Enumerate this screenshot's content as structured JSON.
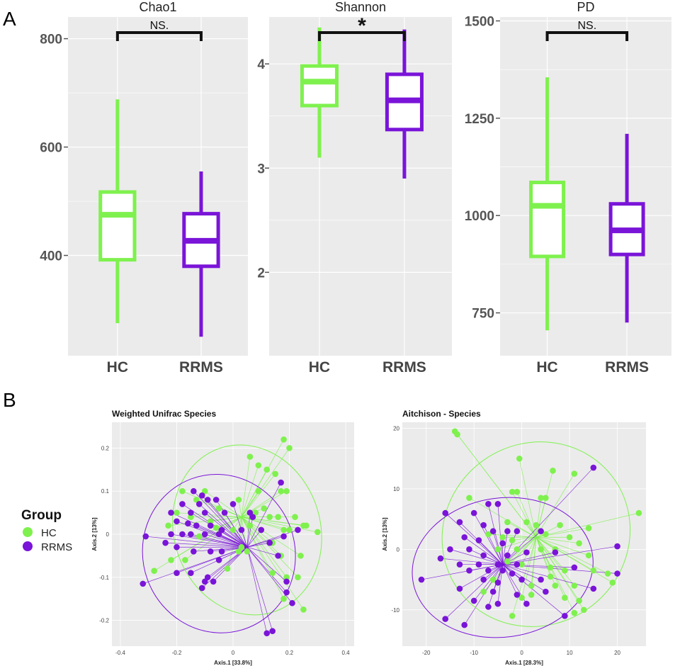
{
  "panel_labels": {
    "a": "A",
    "b": "B"
  },
  "colors": {
    "HC": "#7ff14e",
    "RRMS": "#7a14d8",
    "panel_bg": "#ebebeb",
    "grid": "#ffffff"
  },
  "legend": {
    "title": "Group",
    "items": [
      "HC",
      "RRMS"
    ]
  },
  "chart_data": [
    {
      "type": "boxplot",
      "title": "Chao1",
      "categories": [
        "HC",
        "RRMS"
      ],
      "yticks": [
        400,
        600,
        800
      ],
      "ylim": [
        215,
        840
      ],
      "boxes": [
        {
          "group": "HC",
          "min": 275,
          "q1": 392,
          "median": 475,
          "q3": 517,
          "max": 688
        },
        {
          "group": "RRMS",
          "min": 250,
          "q1": 380,
          "median": 427,
          "q3": 477,
          "max": 555
        }
      ],
      "significance": "NS."
    },
    {
      "type": "boxplot",
      "title": "Shannon",
      "categories": [
        "HC",
        "RRMS"
      ],
      "yticks": [
        2,
        3,
        4
      ],
      "ylim": [
        1.2,
        4.45
      ],
      "boxes": [
        {
          "group": "HC",
          "min": 3.1,
          "q1": 3.6,
          "median": 3.83,
          "q3": 3.98,
          "max": 4.35
        },
        {
          "group": "RRMS",
          "min": 2.9,
          "q1": 3.37,
          "median": 3.65,
          "q3": 3.9,
          "max": 4.33
        }
      ],
      "significance": "*"
    },
    {
      "type": "boxplot",
      "title": "PD",
      "categories": [
        "HC",
        "RRMS"
      ],
      "yticks": [
        750,
        1000,
        1250,
        1500
      ],
      "ylim": [
        640,
        1510
      ],
      "boxes": [
        {
          "group": "HC",
          "min": 705,
          "q1": 895,
          "median": 1025,
          "q3": 1085,
          "max": 1355
        },
        {
          "group": "RRMS",
          "min": 725,
          "q1": 900,
          "median": 962,
          "q3": 1030,
          "max": 1210
        }
      ],
      "significance": "NS."
    },
    {
      "type": "scatter",
      "title": "Weighted Unifrac Species",
      "xlabel": "Axis.1   [33.8%]",
      "ylabel": "Axis.2   [13%]",
      "xticks": [
        -0.4,
        -0.2,
        0.0,
        0.2,
        0.4
      ],
      "yticks": [
        -0.2,
        -0.1,
        0.0,
        0.1,
        0.2
      ],
      "xlim": [
        -0.43,
        0.43
      ],
      "ylim": [
        -0.26,
        0.26
      ],
      "centroids": {
        "HC": [
          0.03,
          0.04
        ],
        "RRMS": [
          0.05,
          -0.03
        ]
      },
      "ellipses": {
        "HC": {
          "cx": 0.05,
          "cy": 0.01,
          "rx": 0.26,
          "ry": 0.2,
          "angle": -18
        },
        "RRMS": {
          "cx": -0.05,
          "cy": -0.045,
          "rx": 0.27,
          "ry": 0.185,
          "angle": -20
        }
      },
      "points": {
        "HC": [
          [
            0.18,
            0.22
          ],
          [
            0.2,
            0.2
          ],
          [
            0.06,
            0.18
          ],
          [
            0.09,
            0.16
          ],
          [
            0.12,
            0.15
          ],
          [
            -0.18,
            0.1
          ],
          [
            0.15,
            0.14
          ],
          [
            0.17,
            0.1
          ],
          [
            0.19,
            0.1
          ],
          [
            -0.1,
            0.1
          ],
          [
            -0.05,
            0.06
          ],
          [
            0.02,
            0.08
          ],
          [
            0.08,
            0.05
          ],
          [
            0.11,
            0.06
          ],
          [
            -0.2,
            0.05
          ],
          [
            -0.15,
            0.04
          ],
          [
            -0.08,
            0.03
          ],
          [
            0.16,
            0.04
          ],
          [
            0.22,
            0.04
          ],
          [
            0.25,
            0.02
          ],
          [
            0.26,
            0.02
          ],
          [
            0.3,
            0.005
          ],
          [
            -0.23,
            0.02
          ],
          [
            -0.06,
            0.015
          ],
          [
            0.0,
            0.01
          ],
          [
            0.06,
            0.02
          ],
          [
            0.18,
            0.01
          ],
          [
            0.2,
            0.01
          ],
          [
            -0.12,
            -0.005
          ],
          [
            0.02,
            -0.04
          ],
          [
            0.14,
            -0.02
          ],
          [
            -0.22,
            -0.06
          ],
          [
            -0.17,
            -0.06
          ],
          [
            0.05,
            -0.04
          ],
          [
            0.17,
            -0.05
          ],
          [
            0.24,
            -0.05
          ],
          [
            -0.28,
            -0.085
          ],
          [
            -0.02,
            -0.08
          ],
          [
            0.14,
            -0.09
          ],
          [
            0.19,
            -0.1
          ],
          [
            0.23,
            -0.1
          ],
          [
            0.18,
            -0.15
          ],
          [
            0.25,
            -0.175
          ],
          [
            0.03,
            -0.03
          ],
          [
            0.09,
            0.1
          ],
          [
            -0.13,
            0.08
          ],
          [
            0.13,
            0.04
          ]
        ],
        "RRMS": [
          [
            0.17,
            0.12
          ],
          [
            -0.14,
            0.1
          ],
          [
            -0.11,
            0.09
          ],
          [
            -0.09,
            0.08
          ],
          [
            -0.18,
            0.07
          ],
          [
            -0.06,
            0.08
          ],
          [
            -0.12,
            0.07
          ],
          [
            -0.03,
            0.05
          ],
          [
            0.0,
            0.07
          ],
          [
            -0.22,
            0.05
          ],
          [
            -0.15,
            0.05
          ],
          [
            -0.1,
            0.05
          ],
          [
            0.06,
            0.05
          ],
          [
            0.07,
            0.04
          ],
          [
            -0.2,
            0.03
          ],
          [
            -0.16,
            0.025
          ],
          [
            -0.13,
            0.02
          ],
          [
            -0.08,
            0.02
          ],
          [
            -0.04,
            0.01
          ],
          [
            0.03,
            0.01
          ],
          [
            0.1,
            0.01
          ],
          [
            -0.22,
            0.0
          ],
          [
            -0.18,
            0.0
          ],
          [
            -0.15,
            0.0
          ],
          [
            -0.1,
            0.0
          ],
          [
            -0.05,
            0.0
          ],
          [
            0.18,
            -0.005
          ],
          [
            0.23,
            0.01
          ],
          [
            -0.31,
            -0.005
          ],
          [
            -0.24,
            -0.02
          ],
          [
            -0.2,
            -0.03
          ],
          [
            -0.14,
            -0.04
          ],
          [
            -0.08,
            -0.04
          ],
          [
            -0.04,
            -0.04
          ],
          [
            0.13,
            -0.02
          ],
          [
            0.16,
            -0.05
          ],
          [
            -0.2,
            -0.09
          ],
          [
            -0.15,
            -0.09
          ],
          [
            -0.1,
            -0.11
          ],
          [
            -0.07,
            -0.11
          ],
          [
            0.19,
            -0.11
          ],
          [
            -0.32,
            -0.115
          ],
          [
            -0.11,
            -0.125
          ],
          [
            -0.09,
            -0.1
          ],
          [
            0.19,
            -0.135
          ],
          [
            0.21,
            -0.16
          ],
          [
            0.12,
            -0.23
          ],
          [
            0.14,
            -0.225
          ],
          [
            -0.05,
            -0.06
          ]
        ]
      }
    },
    {
      "type": "scatter",
      "title": "Aitchison - Species",
      "xlabel": "Axis.1   [28.3%]",
      "ylabel": "Axis.2   [13%]",
      "xticks": [
        -20,
        -10,
        0,
        10,
        20
      ],
      "yticks": [
        -10,
        0,
        10,
        20
      ],
      "xlim": [
        -25,
        26
      ],
      "ylim": [
        -16,
        21
      ],
      "centroids": {
        "HC": [
          3,
          2
        ],
        "RRMS": [
          -4,
          -2.5
        ]
      },
      "ellipses": {
        "HC": {
          "cx": 3,
          "cy": 2.5,
          "rx": 20,
          "ry": 15,
          "angle": -35
        },
        "RRMS": {
          "cx": -4,
          "cy": -3,
          "rx": 19,
          "ry": 11.5,
          "angle": -8
        }
      },
      "points": {
        "HC": [
          [
            -14,
            19.5
          ],
          [
            -13.5,
            19
          ],
          [
            -0.5,
            15
          ],
          [
            6.5,
            13
          ],
          [
            11,
            12.5
          ],
          [
            -11,
            8.5
          ],
          [
            -2,
            9.5
          ],
          [
            -1,
            9.5
          ],
          [
            4,
            8.5
          ],
          [
            5,
            8.5
          ],
          [
            -3,
            4.5
          ],
          [
            1,
            4.5
          ],
          [
            3,
            4
          ],
          [
            8,
            4
          ],
          [
            14,
            3.5
          ],
          [
            -7,
            2.5
          ],
          [
            -4,
            2
          ],
          [
            5,
            2.5
          ],
          [
            10,
            2
          ],
          [
            24.5,
            6
          ],
          [
            12,
            1
          ],
          [
            -5,
            0
          ],
          [
            -1,
            0
          ],
          [
            4,
            0
          ],
          [
            7,
            0
          ],
          [
            14,
            -1
          ],
          [
            -3,
            -2
          ],
          [
            0,
            -2.5
          ],
          [
            6,
            -3
          ],
          [
            9,
            -3.5
          ],
          [
            15,
            -3.5
          ],
          [
            18,
            -4
          ],
          [
            -6,
            -5
          ],
          [
            2,
            -6
          ],
          [
            7,
            -6
          ],
          [
            11,
            -6
          ],
          [
            19,
            -5.5
          ],
          [
            -8,
            -7
          ],
          [
            0,
            -8
          ],
          [
            9,
            -8
          ],
          [
            12,
            -8.5
          ],
          [
            13,
            -10
          ],
          [
            11,
            -10.5
          ],
          [
            -2,
            -11
          ],
          [
            2,
            -7.5
          ],
          [
            6,
            -4.5
          ],
          [
            -2,
            1.5
          ]
        ],
        "RRMS": [
          [
            15,
            13.5
          ],
          [
            -16,
            6
          ],
          [
            -7,
            7.5
          ],
          [
            -5,
            7.5
          ],
          [
            -10,
            6
          ],
          [
            -13,
            4.5
          ],
          [
            -8,
            4
          ],
          [
            -6,
            3
          ],
          [
            -3,
            3
          ],
          [
            -1,
            3
          ],
          [
            4,
            3
          ],
          [
            -12,
            2
          ],
          [
            -9,
            1.5
          ],
          [
            -4,
            1
          ],
          [
            -15,
            0
          ],
          [
            -11,
            0
          ],
          [
            -8,
            -1
          ],
          [
            -3,
            -1
          ],
          [
            1,
            -0.5
          ],
          [
            7,
            -0.5
          ],
          [
            20,
            0.5
          ],
          [
            -17,
            -1.5
          ],
          [
            -13,
            -2.5
          ],
          [
            -9,
            -2.5
          ],
          [
            -5,
            -2.5
          ],
          [
            -1,
            -2.5
          ],
          [
            -11,
            -3.5
          ],
          [
            -7,
            -3.5
          ],
          [
            -4,
            -3.5
          ],
          [
            -2,
            -4
          ],
          [
            11,
            -3
          ],
          [
            -8,
            -5
          ],
          [
            -5,
            -5.5
          ],
          [
            0,
            -5
          ],
          [
            4,
            -5
          ],
          [
            -21,
            -5
          ],
          [
            -13,
            -6.5
          ],
          [
            -6,
            -7
          ],
          [
            -1,
            -7.5
          ],
          [
            5,
            -7
          ],
          [
            -10,
            -8.5
          ],
          [
            -5,
            -9
          ],
          [
            1,
            -9
          ],
          [
            -16,
            -11.5
          ],
          [
            -12,
            -12.5
          ],
          [
            -7,
            -9.5
          ],
          [
            9,
            -11
          ],
          [
            20,
            -4
          ],
          [
            15,
            -6.5
          ]
        ]
      }
    }
  ]
}
